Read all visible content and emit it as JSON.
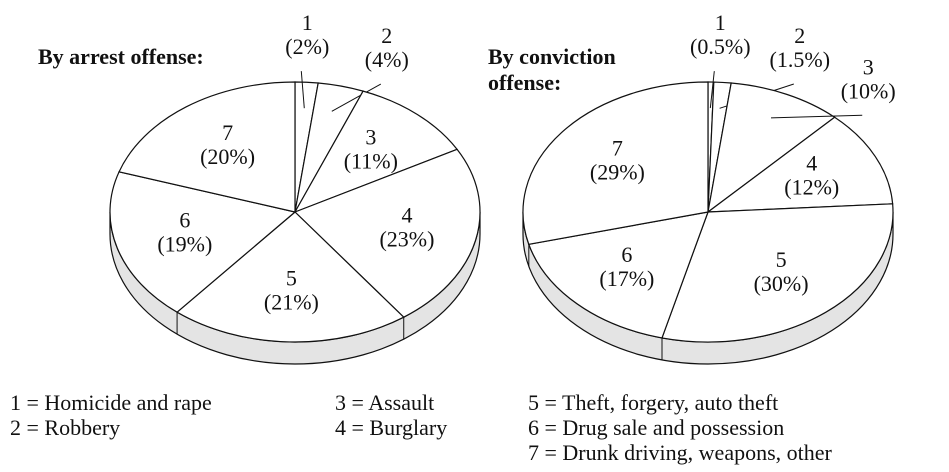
{
  "chart_data": [
    {
      "type": "pie",
      "title": "By arrest offense:",
      "categories": [
        "1",
        "2",
        "3",
        "4",
        "5",
        "6",
        "7"
      ],
      "values": [
        2,
        4,
        11,
        23,
        21,
        19,
        20
      ],
      "value_labels": [
        "(2%)",
        "(4%)",
        "(11%)",
        "(23%)",
        "(21%)",
        "(19%)",
        "(20%)"
      ]
    },
    {
      "type": "pie",
      "title": "By conviction offense:",
      "categories": [
        "1",
        "2",
        "3",
        "4",
        "5",
        "6",
        "7"
      ],
      "values": [
        0.5,
        1.5,
        10,
        12,
        30,
        17,
        29
      ],
      "value_labels": [
        "(0.5%)",
        "(1.5%)",
        "(10%)",
        "(12%)",
        "(30%)",
        "(17%)",
        "(29%)"
      ]
    }
  ],
  "legend": [
    "1 = Homicide and rape",
    "2 = Robbery",
    "3 = Assault",
    "4 = Burglary",
    "5 = Theft, forgery, auto theft",
    "6 = Drug sale and possession",
    "7 = Drunk driving, weapons, other"
  ]
}
